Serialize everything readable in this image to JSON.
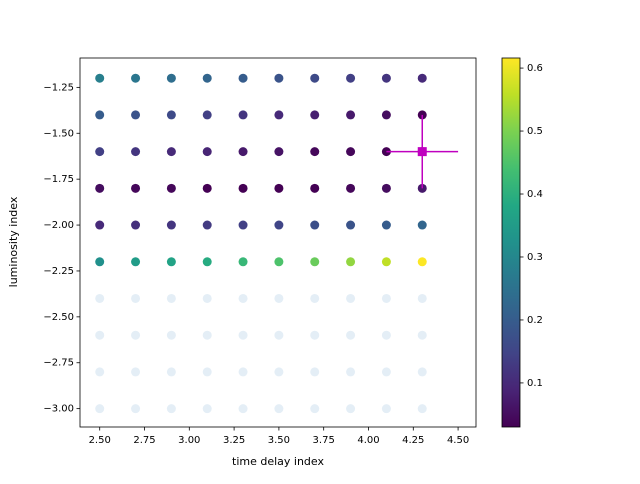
{
  "chart_data": {
    "type": "scatter",
    "xlabel": "time delay index",
    "ylabel": "luminosity index",
    "xlim": [
      2.39,
      4.6
    ],
    "ylim": [
      -3.1,
      -1.09
    ],
    "xticks": [
      {
        "value": 2.5,
        "label": "2.50"
      },
      {
        "value": 2.75,
        "label": "2.75"
      },
      {
        "value": 3.0,
        "label": "3.00"
      },
      {
        "value": 3.25,
        "label": "3.25"
      },
      {
        "value": 3.5,
        "label": "3.50"
      },
      {
        "value": 3.75,
        "label": "3.75"
      },
      {
        "value": 4.0,
        "label": "4.00"
      },
      {
        "value": 4.25,
        "label": "4.25"
      },
      {
        "value": 4.5,
        "label": "4.50"
      }
    ],
    "yticks": [
      {
        "value": -1.25,
        "label": "−1.25"
      },
      {
        "value": -1.5,
        "label": "−1.50"
      },
      {
        "value": -1.75,
        "label": "−1.75"
      },
      {
        "value": -2.0,
        "label": "−2.00"
      },
      {
        "value": -2.25,
        "label": "−2.25"
      },
      {
        "value": -2.5,
        "label": "−2.50"
      },
      {
        "value": -2.75,
        "label": "−2.75"
      },
      {
        "value": -3.0,
        "label": "−3.00"
      }
    ],
    "colormap": "viridis",
    "clim": [
      0.03,
      0.616
    ],
    "cticks": [
      0.1,
      0.2,
      0.3,
      0.4,
      0.5,
      0.6
    ],
    "series": [
      {
        "x": [
          2.5,
          2.7,
          2.9,
          3.1,
          3.3,
          3.5,
          3.7,
          3.9,
          4.1,
          4.3,
          2.5,
          2.7,
          2.9,
          3.1,
          3.3,
          3.5,
          3.7,
          3.9,
          4.1,
          4.3,
          2.5,
          2.7,
          2.9,
          3.1,
          3.3,
          3.5,
          3.7,
          3.9,
          4.1,
          4.3,
          2.5,
          2.7,
          2.9,
          3.1,
          3.3,
          3.5,
          3.7,
          3.9,
          4.1,
          4.3,
          2.5,
          2.7,
          2.9,
          3.1,
          3.3,
          3.5,
          3.7,
          3.9,
          4.1,
          4.3,
          2.5,
          2.7,
          2.9,
          3.1,
          3.3,
          3.5,
          3.7,
          3.9,
          4.1,
          4.3
        ],
        "y": [
          -1.2,
          -1.2,
          -1.2,
          -1.2,
          -1.2,
          -1.2,
          -1.2,
          -1.2,
          -1.2,
          -1.2,
          -1.4,
          -1.4,
          -1.4,
          -1.4,
          -1.4,
          -1.4,
          -1.4,
          -1.4,
          -1.4,
          -1.4,
          -1.6,
          -1.6,
          -1.6,
          -1.6,
          -1.6,
          -1.6,
          -1.6,
          -1.6,
          -1.6,
          -1.6,
          -1.8,
          -1.8,
          -1.8,
          -1.8,
          -1.8,
          -1.8,
          -1.8,
          -1.8,
          -1.8,
          -1.8,
          -2.0,
          -2.0,
          -2.0,
          -2.0,
          -2.0,
          -2.0,
          -2.0,
          -2.0,
          -2.0,
          -2.0,
          -2.2,
          -2.2,
          -2.2,
          -2.2,
          -2.2,
          -2.2,
          -2.2,
          -2.2,
          -2.2,
          -2.2
        ],
        "c": [
          0.28,
          0.26,
          0.24,
          0.22,
          0.2,
          0.18,
          0.16,
          0.14,
          0.12,
          0.1,
          0.2,
          0.18,
          0.16,
          0.14,
          0.12,
          0.1,
          0.08,
          0.07,
          0.05,
          0.03,
          0.14,
          0.12,
          0.1,
          0.09,
          0.07,
          0.06,
          0.04,
          0.04,
          0.03,
          0.03,
          0.05,
          0.04,
          0.04,
          0.03,
          0.03,
          0.03,
          0.03,
          0.04,
          0.05,
          0.07,
          0.1,
          0.11,
          0.12,
          0.13,
          0.14,
          0.15,
          0.17,
          0.18,
          0.2,
          0.22,
          0.32,
          0.35,
          0.37,
          0.39,
          0.42,
          0.45,
          0.48,
          0.52,
          0.56,
          0.615
        ]
      },
      {
        "x": [
          2.5,
          2.7,
          2.9,
          3.1,
          3.3,
          3.5,
          3.7,
          3.9,
          4.1,
          4.3,
          2.5,
          2.7,
          2.9,
          3.1,
          3.3,
          3.5,
          3.7,
          3.9,
          4.1,
          4.3,
          2.5,
          2.7,
          2.9,
          3.1,
          3.3,
          3.5,
          3.7,
          3.9,
          4.1,
          4.3,
          2.5,
          2.7,
          2.9,
          3.1,
          3.3,
          3.5,
          3.7,
          3.9,
          4.1,
          4.3
        ],
        "y": [
          -2.4,
          -2.4,
          -2.4,
          -2.4,
          -2.4,
          -2.4,
          -2.4,
          -2.4,
          -2.4,
          -2.4,
          -2.6,
          -2.6,
          -2.6,
          -2.6,
          -2.6,
          -2.6,
          -2.6,
          -2.6,
          -2.6,
          -2.6,
          -2.8,
          -2.8,
          -2.8,
          -2.8,
          -2.8,
          -2.8,
          -2.8,
          -2.8,
          -2.8,
          -2.8,
          -3.0,
          -3.0,
          -3.0,
          -3.0,
          -3.0,
          -3.0,
          -3.0,
          -3.0,
          -3.0,
          -3.0
        ],
        "color": "#1f77b4",
        "alpha": 0.12
      }
    ],
    "marker": {
      "x": 4.3,
      "y": -1.6,
      "xerr": 0.2,
      "yerr": 0.2,
      "color": "#bf00bf"
    }
  }
}
